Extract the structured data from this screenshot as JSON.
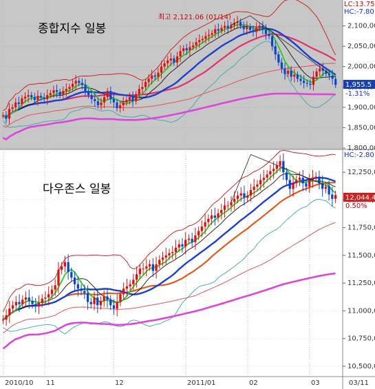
{
  "dates": {
    "labels": [
      "2010/10",
      "11",
      "12",
      "2011/01",
      "02",
      "03",
      "03/11"
    ]
  },
  "chart_data": [
    {
      "type": "candlestick",
      "title": "종합지수 일봉",
      "annotation": "최고 2,121.06 (01/14)",
      "header": {
        "lc": "LC:13.75",
        "hc": "HC:-7.80"
      },
      "last_value": "1,955.5",
      "change_pct": "-1.31%",
      "ylim": [
        1800,
        2150
      ],
      "yticks": [
        {
          "v": 2100,
          "label": "2,100,00"
        },
        {
          "v": 2050,
          "label": "2,050,00"
        },
        {
          "v": 2000,
          "label": "2,000,00"
        },
        {
          "v": 1950,
          "label": "1,950,00"
        },
        {
          "v": 1900,
          "label": "1,900,00"
        },
        {
          "v": 1850,
          "label": "1,850,00"
        },
        {
          "v": 1800,
          "label": "1,800,00"
        }
      ],
      "closes": [
        1880,
        1872,
        1896,
        1900,
        1912,
        1908,
        1922,
        1926,
        1930,
        1925,
        1918,
        1928,
        1924,
        1920,
        1930,
        1935,
        1942,
        1938,
        1930,
        1940,
        1945,
        1950,
        1958,
        1965,
        1960,
        1955,
        1940,
        1930,
        1920,
        1915,
        1905,
        1912,
        1925,
        1940,
        1920,
        1912,
        1898,
        1905,
        1912,
        1918,
        1925,
        1915,
        1932,
        1945,
        1950,
        1962,
        1970,
        1978,
        1975,
        1985,
        2000,
        2008,
        2015,
        2020,
        2010,
        2025,
        2038,
        2045,
        2040,
        2048,
        2052,
        2060,
        2065,
        2068,
        2075,
        2078,
        2082,
        2092,
        2088,
        2095,
        2100,
        2094,
        2102,
        2107,
        2110,
        2100,
        2092,
        2098,
        2090,
        2085,
        2095,
        2100,
        2090,
        2080,
        2075,
        2050,
        2030,
        2010,
        1995,
        1982,
        1990,
        1975,
        1980,
        1970,
        1965,
        1960,
        1958,
        1955,
        1975,
        1988,
        1995,
        1990,
        1982,
        1978,
        1970,
        1955
      ]
    },
    {
      "type": "candlestick",
      "title": "다우존스 일봉",
      "header": {
        "hc": "HC:-2.80"
      },
      "last_value": "12,044.4",
      "change_pct": "0.50%",
      "ylim": [
        10450,
        12400
      ],
      "yticks": [
        {
          "v": 12250,
          "label": "12,250,0"
        },
        {
          "v": 12000,
          "label": "12,000,0"
        },
        {
          "v": 11750,
          "label": "11,750,0"
        },
        {
          "v": 11500,
          "label": "11,500,0"
        },
        {
          "v": 11250,
          "label": "11,250,0"
        },
        {
          "v": 11000,
          "label": "11,000,0"
        },
        {
          "v": 10750,
          "label": "10,750,0"
        },
        {
          "v": 10500,
          "label": "10,500,0"
        }
      ],
      "closes": [
        10920,
        10960,
        11020,
        11050,
        11080,
        11060,
        11100,
        11120,
        11090,
        11060,
        11040,
        11070,
        11110,
        11120,
        11150,
        11190,
        11230,
        11370,
        11400,
        11440,
        11350,
        11300,
        11240,
        11200,
        11180,
        11160,
        11080,
        11060,
        11120,
        11050,
        11090,
        11130,
        11100,
        11050,
        11020,
        11080,
        11150,
        11200,
        11220,
        11240,
        11280,
        11330,
        11380,
        11380,
        11400,
        11420,
        11360,
        11420,
        11460,
        11480,
        11500,
        11520,
        11530,
        11570,
        11600,
        11580,
        11640,
        11650,
        11620,
        11680,
        11720,
        11760,
        11800,
        11830,
        11860,
        11840,
        11880,
        11910,
        11950,
        11950,
        11980,
        12010,
        12040,
        12060,
        12020,
        12040,
        12090,
        12120,
        12140,
        12180,
        12200,
        12230,
        12260,
        12280,
        12310,
        12350,
        12250,
        12180,
        12100,
        12150,
        12180,
        12200,
        12150,
        12120,
        12180,
        12200,
        12210,
        12150,
        12100,
        12120,
        12050,
        12010,
        12044
      ]
    }
  ]
}
